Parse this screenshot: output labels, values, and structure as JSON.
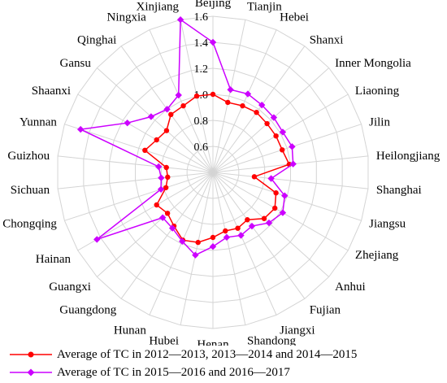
{
  "chart_data": {
    "type": "radar",
    "categories": [
      "Beijing",
      "Tianjin",
      "Hebei",
      "Shanxi",
      "Inner Mongolia",
      "Liaoning",
      "Jilin",
      "Heilongjiang",
      "Shanghai",
      "Jiangsu",
      "Zhejiang",
      "Anhui",
      "Fujian",
      "Jiangxi",
      "Shandong",
      "Henan",
      "Hubei",
      "Hunan",
      "Guangdong",
      "Guangxi",
      "Hainan",
      "Chongqing",
      "Sichuan",
      "Guizhou",
      "Yunnan",
      "Shaanxi",
      "Gansu",
      "Qinghai",
      "Ningxia",
      "Xinjiang"
    ],
    "radial_ticks": [
      0.6,
      0.8,
      1.0,
      1.2,
      1.4,
      1.6
    ],
    "range": [
      0.4,
      1.6
    ],
    "grid": true,
    "legend_position": "bottom",
    "series": [
      {
        "name": "Average of TC in 2012—2013, 2013—2014 and  2014—2015",
        "color": "#ff0000",
        "marker": "circle",
        "values": [
          1.0,
          0.95,
          0.96,
          0.97,
          0.96,
          0.96,
          0.96,
          0.99,
          0.72,
          0.91,
          0.95,
          0.93,
          0.85,
          0.87,
          0.86,
          0.9,
          0.95,
          0.97,
          0.91,
          0.87,
          0.9,
          0.78,
          0.75,
          0.76,
          0.95,
          0.9,
          0.88,
          0.95,
          0.96,
          1.0
        ]
      },
      {
        "name": "Average of TC in 2015—2016 and 2016—2017",
        "color": "#cc00ff",
        "marker": "diamond",
        "values": [
          1.4,
          1.05,
          1.06,
          1.04,
          1.03,
          1.02,
          1.04,
          1.02,
          0.85,
          0.98,
          1.02,
          0.98,
          0.91,
          0.93,
          0.91,
          0.97,
          1.05,
          0.98,
          0.93,
          0.92,
          1.43,
          0.82,
          0.8,
          0.82,
          1.47,
          1.16,
          1.04,
          1.0,
          1.05,
          1.6
        ]
      }
    ]
  }
}
